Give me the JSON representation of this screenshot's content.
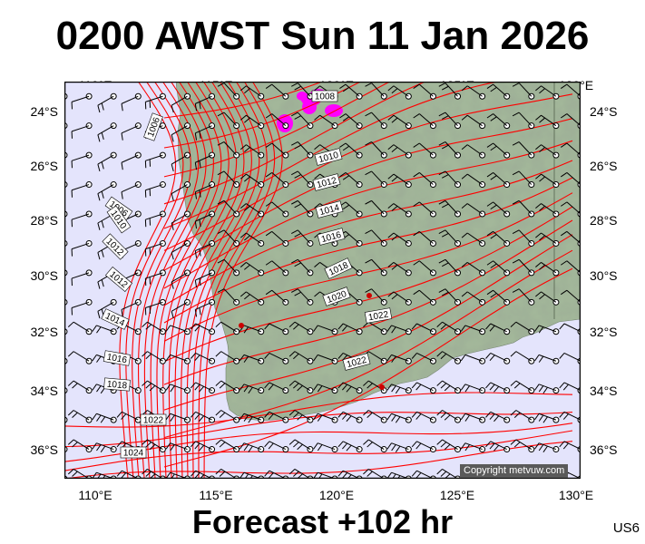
{
  "title": "0200 AWST Sun 11 Jan 2026",
  "subtitle": "Forecast +102 hr",
  "chart_code": "US6",
  "copyright": "Copyright metvuw.com",
  "lon_labels": [
    "110°E",
    "115°E",
    "120°E",
    "125°E",
    "130°E"
  ],
  "lat_labels": [
    "24°S",
    "26°S",
    "28°S",
    "30°S",
    "32°S",
    "34°S",
    "36°S"
  ],
  "isobar_labels": [
    "1006",
    "1008",
    "1010",
    "1012",
    "1014",
    "1016",
    "1018",
    "1020",
    "1022",
    "1024"
  ],
  "colors": {
    "ocean": "#e4e4fc",
    "land": "#a3b79a",
    "isobar": "#ff0000",
    "barb": "#000000",
    "rain": "#ff00ff",
    "frame": "#000000"
  },
  "map": {
    "lon_range": [
      109,
      130
    ],
    "lat_range": [
      -37,
      -23.5
    ],
    "isobar_interval_hpa": 2,
    "grid_step_deg": 1
  },
  "icons": [
    "wind-barb-icon",
    "calm-circle-icon",
    "station-dot-icon"
  ]
}
